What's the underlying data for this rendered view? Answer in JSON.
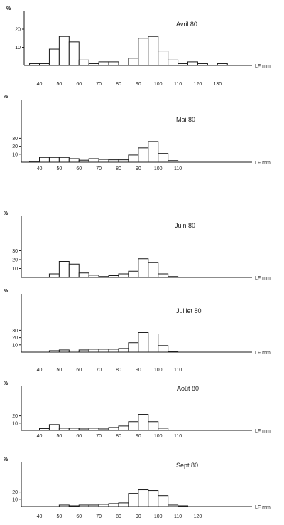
{
  "chart_data": [
    {
      "type": "bar",
      "title": "Avril 80",
      "ylabel": "%",
      "xlabel": "LF mm",
      "yticks": [
        10,
        20
      ],
      "ylim": [
        0,
        25
      ],
      "xticks": [
        "40",
        "50",
        "60",
        "70",
        "80",
        "90",
        "100",
        "110",
        "120",
        "130"
      ],
      "bin_width": 5,
      "x": [
        37.5,
        42.5,
        47.5,
        52.5,
        57.5,
        62.5,
        67.5,
        72.5,
        77.5,
        82.5,
        87.5,
        92.5,
        97.5,
        102.5,
        107.5,
        112.5,
        117.5,
        122.5,
        127.5,
        132.5
      ],
      "values": [
        1,
        1,
        9,
        16,
        13,
        3,
        1,
        2,
        2,
        0,
        4,
        15,
        16,
        8,
        3,
        1,
        2,
        1,
        0,
        1
      ]
    },
    {
      "type": "bar",
      "title": "Mai 80",
      "ylabel": "%",
      "xlabel": "LF mm",
      "yticks": [
        10,
        20,
        30
      ],
      "ylim": [
        0,
        30
      ],
      "xticks": [
        "40",
        "50",
        "60",
        "70",
        "80",
        "90",
        "100",
        "110"
      ],
      "bin_width": 5,
      "x": [
        37.5,
        42.5,
        47.5,
        52.5,
        57.5,
        62.5,
        67.5,
        72.5,
        77.5,
        82.5,
        87.5,
        92.5,
        97.5,
        102.5,
        107.5
      ],
      "values": [
        1,
        6,
        6,
        6,
        4.5,
        2.5,
        4.5,
        3.5,
        3,
        3,
        9,
        18,
        26,
        11,
        2
      ]
    },
    {
      "type": "bar",
      "title": "Juin 80",
      "ylabel": "%",
      "xlabel": "LF mm",
      "yticks": [
        10,
        20,
        30
      ],
      "ylim": [
        0,
        30
      ],
      "xticks": [
        "40",
        "50",
        "60",
        "70",
        "80",
        "90",
        "100",
        "110"
      ],
      "bin_width": 5,
      "x": [
        47.5,
        52.5,
        57.5,
        62.5,
        67.5,
        72.5,
        77.5,
        82.5,
        87.5,
        92.5,
        97.5,
        102.5,
        107.5
      ],
      "values": [
        4,
        18,
        15,
        5,
        2.5,
        1,
        2,
        4,
        7,
        21,
        17,
        4,
        1
      ]
    },
    {
      "type": "bar",
      "title": "Juillet 80",
      "ylabel": "%",
      "xlabel": "LF mm",
      "yticks": [
        10,
        20,
        30
      ],
      "ylim": [
        0,
        30
      ],
      "xticks": [
        "40",
        "50",
        "60",
        "70",
        "80",
        "90",
        "100",
        "110"
      ],
      "bin_width": 5,
      "x": [
        47.5,
        52.5,
        57.5,
        62.5,
        67.5,
        72.5,
        77.5,
        82.5,
        87.5,
        92.5,
        97.5,
        102.5,
        107.5
      ],
      "values": [
        2,
        3,
        1.5,
        3,
        4,
        4,
        4,
        5,
        13,
        27,
        25,
        9,
        1
      ]
    },
    {
      "type": "bar",
      "title": "Août 80",
      "ylabel": "%",
      "xlabel": "LF mm",
      "yticks": [
        10,
        20
      ],
      "ylim": [
        0,
        25
      ],
      "xticks": [
        "40",
        "50",
        "60",
        "70",
        "80",
        "90",
        "100",
        "110"
      ],
      "bin_width": 5,
      "x": [
        42.5,
        47.5,
        52.5,
        57.5,
        62.5,
        67.5,
        72.5,
        77.5,
        82.5,
        87.5,
        92.5,
        97.5,
        102.5
      ],
      "values": [
        2.5,
        8,
        3,
        3,
        2,
        3,
        2,
        4,
        6,
        12,
        22,
        12,
        3
      ]
    },
    {
      "type": "bar",
      "title": "Sept 80",
      "ylabel": "%",
      "xlabel": "LF mm",
      "yticks": [
        10,
        20
      ],
      "ylim": [
        0,
        25
      ],
      "xticks": [
        "40",
        "50",
        "60",
        "70",
        "80",
        "90",
        "100",
        "110",
        "120"
      ],
      "bin_width": 5,
      "x": [
        52.5,
        57.5,
        62.5,
        67.5,
        72.5,
        77.5,
        82.5,
        87.5,
        92.5,
        97.5,
        102.5,
        107.5,
        112.5
      ],
      "values": [
        2,
        1,
        2,
        2,
        3,
        4,
        5,
        18,
        23,
        22,
        15,
        2,
        1
      ]
    }
  ]
}
